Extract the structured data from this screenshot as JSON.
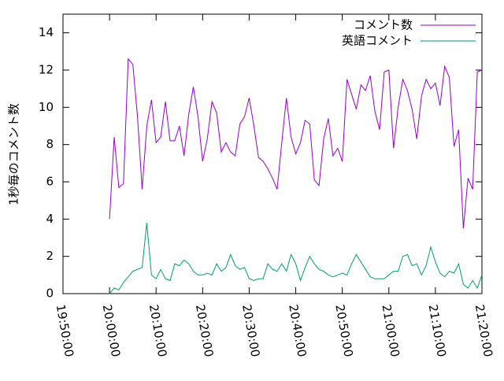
{
  "chart_data": {
    "type": "line",
    "ylabel": "1秒毎のコメント数",
    "x": [
      "20:00:00",
      "20:01:00",
      "20:02:00",
      "20:03:00",
      "20:04:00",
      "20:05:00",
      "20:06:00",
      "20:07:00",
      "20:08:00",
      "20:09:00",
      "20:10:00",
      "20:11:00",
      "20:12:00",
      "20:13:00",
      "20:14:00",
      "20:15:00",
      "20:16:00",
      "20:17:00",
      "20:18:00",
      "20:19:00",
      "20:20:00",
      "20:21:00",
      "20:22:00",
      "20:23:00",
      "20:24:00",
      "20:25:00",
      "20:26:00",
      "20:27:00",
      "20:28:00",
      "20:29:00",
      "20:30:00",
      "20:31:00",
      "20:32:00",
      "20:33:00",
      "20:34:00",
      "20:35:00",
      "20:36:00",
      "20:37:00",
      "20:38:00",
      "20:39:00",
      "20:40:00",
      "20:41:00",
      "20:42:00",
      "20:43:00",
      "20:44:00",
      "20:45:00",
      "20:46:00",
      "20:47:00",
      "20:48:00",
      "20:49:00",
      "20:50:00",
      "20:51:00",
      "20:52:00",
      "20:53:00",
      "20:54:00",
      "20:55:00",
      "20:56:00",
      "20:57:00",
      "20:58:00",
      "20:59:00",
      "21:00:00",
      "21:01:00",
      "21:02:00",
      "21:03:00",
      "21:04:00",
      "21:05:00",
      "21:06:00",
      "21:07:00",
      "21:08:00",
      "21:09:00",
      "21:10:00",
      "21:11:00",
      "21:12:00",
      "21:13:00",
      "21:14:00",
      "21:15:00",
      "21:16:00",
      "21:17:00",
      "21:18:00",
      "21:19:00",
      "21:20:00"
    ],
    "series": [
      {
        "name": "コメント数",
        "color": "#9400d3",
        "values": [
          4.0,
          8.4,
          5.7,
          5.9,
          12.6,
          12.3,
          9.5,
          5.6,
          9.0,
          10.4,
          8.1,
          8.4,
          10.3,
          8.2,
          8.2,
          9.0,
          7.4,
          9.6,
          11.1,
          9.5,
          7.1,
          8.3,
          10.3,
          9.7,
          7.6,
          8.1,
          7.6,
          7.4,
          9.1,
          9.5,
          10.5,
          9.0,
          7.3,
          7.1,
          6.7,
          6.2,
          5.6,
          8.1,
          10.5,
          8.4,
          7.5,
          8.1,
          9.3,
          9.1,
          6.1,
          5.8,
          8.3,
          9.4,
          7.4,
          7.8,
          7.1,
          11.5,
          10.7,
          9.9,
          11.2,
          10.9,
          11.7,
          9.8,
          8.8,
          11.9,
          12.0,
          7.8,
          10.0,
          11.5,
          10.9,
          9.9,
          8.3,
          10.6,
          11.5,
          11.0,
          11.3,
          10.1,
          12.2,
          11.6,
          7.9,
          8.8,
          3.5,
          6.2,
          5.6,
          11.9,
          12.0
        ]
      },
      {
        "name": "英語コメント",
        "color": "#009e73",
        "values": [
          0,
          0.3,
          0.2,
          0.6,
          0.9,
          1.2,
          1.3,
          1.4,
          3.8,
          1.0,
          0.8,
          1.3,
          0.8,
          0.7,
          1.6,
          1.5,
          1.8,
          1.6,
          1.2,
          1.0,
          1.0,
          1.1,
          1.0,
          1.6,
          1.2,
          1.4,
          2.1,
          1.5,
          1.3,
          1.4,
          0.8,
          0.7,
          0.8,
          0.8,
          1.6,
          1.3,
          1.2,
          1.6,
          1.2,
          2.1,
          1.6,
          0.7,
          1.4,
          2.0,
          1.6,
          1.3,
          1.2,
          1.0,
          0.9,
          1.0,
          1.1,
          1.0,
          1.6,
          2.1,
          1.7,
          1.3,
          0.9,
          0.8,
          0.8,
          0.8,
          1.0,
          1.2,
          1.2,
          2.0,
          2.1,
          1.5,
          1.6,
          1.0,
          1.5,
          2.5,
          1.7,
          1.1,
          0.9,
          1.2,
          1.1,
          1.6,
          0.5,
          0.3,
          0.7,
          0.3,
          1.0
        ]
      }
    ],
    "xlim": [
      "19:50:00",
      "21:20:00"
    ],
    "xticks": [
      "19:50:00",
      "20:00:00",
      "20:10:00",
      "20:20:00",
      "20:30:00",
      "20:40:00",
      "20:50:00",
      "21:00:00",
      "21:10:00",
      "21:20:00"
    ],
    "ylim": [
      0,
      15
    ],
    "yticks": [
      0,
      2,
      4,
      6,
      8,
      10,
      12,
      14
    ],
    "grid": false,
    "legend": "top-right"
  }
}
